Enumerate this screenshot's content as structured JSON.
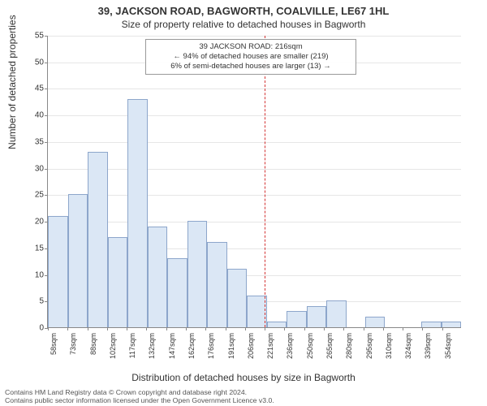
{
  "title": "39, JACKSON ROAD, BAGWORTH, COALVILLE, LE67 1HL",
  "subtitle": "Size of property relative to detached houses in Bagworth",
  "ylabel": "Number of detached properties",
  "xlabel": "Distribution of detached houses by size in Bagworth",
  "chart": {
    "type": "histogram",
    "background_color": "#ffffff",
    "grid_color": "#e6e6e6",
    "axis_color": "#888888",
    "bar_fill": "#dbe7f5",
    "bar_stroke": "rgba(100,130,180,0.65)",
    "marker_color": "#d33333",
    "ylim": [
      0,
      55
    ],
    "ytick_step": 5,
    "xticks": [
      "58sqm",
      "73sqm",
      "88sqm",
      "102sqm",
      "117sqm",
      "132sqm",
      "147sqm",
      "162sqm",
      "176sqm",
      "191sqm",
      "206sqm",
      "221sqm",
      "236sqm",
      "250sqm",
      "265sqm",
      "280sqm",
      "295sqm",
      "310sqm",
      "324sqm",
      "339sqm",
      "354sqm"
    ],
    "bars": [
      21,
      25,
      33,
      17,
      43,
      19,
      13,
      20,
      16,
      11,
      6,
      1,
      3,
      4,
      5,
      0,
      2,
      0,
      0,
      1,
      1
    ],
    "marker_index": 11,
    "label_fontsize": 12,
    "tick_fontsize": 10
  },
  "annotation": {
    "line1": "39 JACKSON ROAD: 216sqm",
    "line2": "← 94% of detached houses are smaller (219)",
    "line3": "6% of semi-detached houses are larger (13) →"
  },
  "footer": {
    "line1": "Contains HM Land Registry data © Crown copyright and database right 2024.",
    "line2": "Contains public sector information licensed under the Open Government Licence v3.0."
  }
}
